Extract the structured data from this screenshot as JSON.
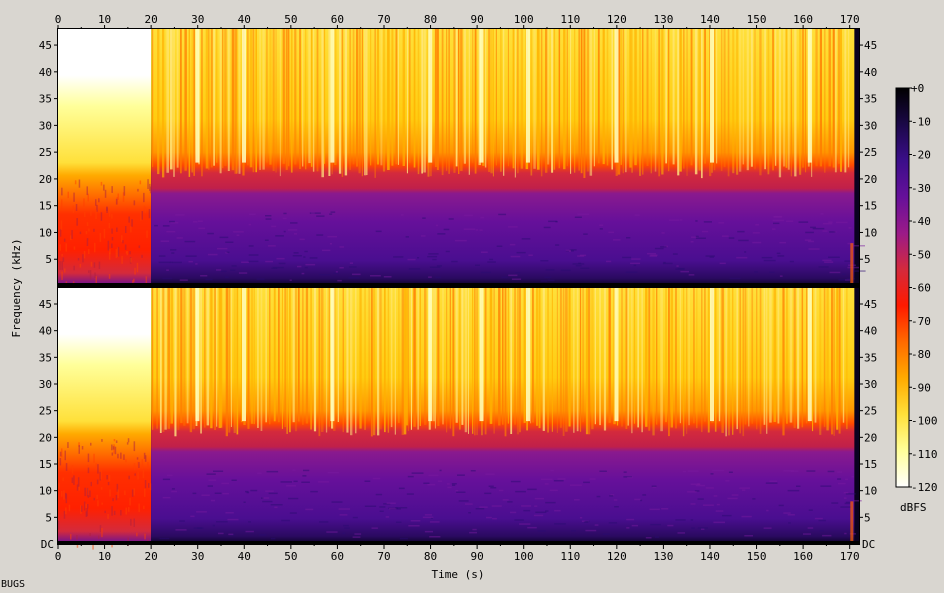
{
  "corner_label": "BUGS",
  "chart_data": {
    "type": "heatmap",
    "title": "",
    "xlabel": "Time (s)",
    "ylabel": "Frequency (kHz)",
    "colorbar_label": "dBFS",
    "x_ticks": [
      0,
      10,
      20,
      30,
      40,
      50,
      60,
      70,
      80,
      90,
      100,
      110,
      120,
      130,
      140,
      150,
      160,
      170
    ],
    "xlim": [
      0,
      172
    ],
    "channels": [
      {
        "ylim": [
          0,
          48
        ],
        "y_ticks": [
          "5",
          "10",
          "15",
          "20",
          "25",
          "30",
          "35",
          "40",
          "45"
        ],
        "y_tick_values": [
          5,
          10,
          15,
          20,
          25,
          30,
          35,
          40,
          45
        ],
        "baseline_label": ""
      },
      {
        "ylim": [
          0,
          48
        ],
        "y_ticks": [
          "5",
          "10",
          "15",
          "20",
          "25",
          "30",
          "35",
          "40",
          "45"
        ],
        "y_tick_values": [
          5,
          10,
          15,
          20,
          25,
          30,
          35,
          40,
          45
        ],
        "baseline_label": "DC"
      }
    ],
    "colorbar_ticks": [
      "+0",
      "-10",
      "-20",
      "-30",
      "-40",
      "-50",
      "-60",
      "-70",
      "-80",
      "-90",
      "-100",
      "-110",
      "-120"
    ],
    "colorbar_values": [
      0,
      -10,
      -20,
      -30,
      -40,
      -50,
      -60,
      -70,
      -80,
      -90,
      -100,
      -110,
      -120
    ],
    "colorbar_range": [
      -120,
      0
    ],
    "colormap": [
      "#000000",
      "#1b0848",
      "#3b0e8a",
      "#66109a",
      "#9b1a88",
      "#d42a3c",
      "#ff1a00",
      "#ff6a00",
      "#ffaa00",
      "#ffe03a",
      "#ffff9a",
      "#ffffff"
    ],
    "regions": {
      "intro_end_s": 20,
      "intro_bandwidth_khz": 22,
      "music_bandwidth_khz": 21,
      "music_end_s": 171
    }
  }
}
